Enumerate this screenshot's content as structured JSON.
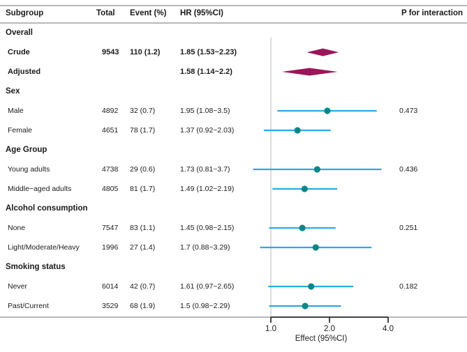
{
  "header": {
    "subgroup": "Subgroup",
    "total": "Total",
    "event": "Event (%)",
    "hr": "HR (95%CI)",
    "p": "P for interaction"
  },
  "colors": {
    "summary_diamond": "#9b1559",
    "ci_line": "#29abe2",
    "point_marker": "#0e8585",
    "reference_line": "#c8c8c8",
    "axis": "#1a1a1a",
    "rule": "#b8b8b8"
  },
  "chart_data": {
    "type": "forest",
    "xlabel": "Effect (95%CI)",
    "x_scale": "log2",
    "x_ticks": [
      {
        "label": "1.0",
        "value": 1.0
      },
      {
        "label": "2.0",
        "value": 2.0
      },
      {
        "label": "4.0",
        "value": 4.0
      }
    ],
    "reference_value": 1.0,
    "rows": [
      {
        "type": "section",
        "label": "Overall"
      },
      {
        "type": "summary",
        "label": "Crude",
        "total": "9543",
        "event": "110 (1.2)",
        "hr_text": "1.85 (1.53~2.23)",
        "est": 1.85,
        "lo": 1.53,
        "hi": 2.23
      },
      {
        "type": "summary",
        "label": "Adjusted",
        "total": "",
        "event": "",
        "hr_text": "1.58 (1.14~2.2)",
        "est": 1.58,
        "lo": 1.14,
        "hi": 2.2
      },
      {
        "type": "section",
        "label": "Sex"
      },
      {
        "type": "item",
        "label": "Male",
        "total": "4892",
        "event": "32 (0.7)",
        "hr_text": "1.95 (1.08~3.5)",
        "est": 1.95,
        "lo": 1.08,
        "hi": 3.5,
        "p": "0.473"
      },
      {
        "type": "item",
        "label": "Female",
        "total": "4651",
        "event": "78 (1.7)",
        "hr_text": "1.37 (0.92~2.03)",
        "est": 1.37,
        "lo": 0.92,
        "hi": 2.03
      },
      {
        "type": "section",
        "label": "Age Group"
      },
      {
        "type": "item",
        "label": "Young adults",
        "total": "4738",
        "event": "29 (0.6)",
        "hr_text": "1.73 (0.81~3.7)",
        "est": 1.73,
        "lo": 0.81,
        "hi": 3.7,
        "p": "0.436"
      },
      {
        "type": "item",
        "label": "Middle−aged adults",
        "total": "4805",
        "event": "81 (1.7)",
        "hr_text": "1.49 (1.02~2.19)",
        "est": 1.49,
        "lo": 1.02,
        "hi": 2.19
      },
      {
        "type": "section",
        "label": "Alcohol consumption"
      },
      {
        "type": "item",
        "label": "None",
        "total": "7547",
        "event": "83 (1.1)",
        "hr_text": "1.45 (0.98~2.15)",
        "est": 1.45,
        "lo": 0.98,
        "hi": 2.15,
        "p": "0.251"
      },
      {
        "type": "item",
        "label": "Light/Moderate/Heavy",
        "total": "1996",
        "event": "27 (1.4)",
        "hr_text": "1.7 (0.88~3.29)",
        "est": 1.7,
        "lo": 0.88,
        "hi": 3.29
      },
      {
        "type": "section",
        "label": "Smoking status"
      },
      {
        "type": "item",
        "label": "Never",
        "total": "6014",
        "event": "42 (0.7)",
        "hr_text": "1.61 (0.97~2.65)",
        "est": 1.61,
        "lo": 0.97,
        "hi": 2.65,
        "p": "0.182"
      },
      {
        "type": "item",
        "label": "Past/Current",
        "total": "3529",
        "event": "68 (1.9)",
        "hr_text": "1.5 (0.98~2.29)",
        "est": 1.5,
        "lo": 0.98,
        "hi": 2.29
      }
    ]
  }
}
